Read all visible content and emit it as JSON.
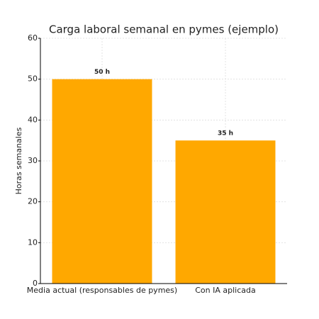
{
  "chart_data": {
    "type": "bar",
    "title": "Carga laboral semanal en pymes (ejemplo)",
    "y_label": "Horas semanales",
    "categories": [
      "Media actual (responsables de pymes)",
      "Con IA aplicada"
    ],
    "values": [
      50,
      35
    ],
    "value_labels": [
      "50 h",
      "35 h"
    ],
    "color": "#ffa800",
    "ylim": [
      0,
      60
    ],
    "yticks": [
      0,
      10,
      20,
      30,
      40,
      50,
      60
    ],
    "grid": true
  }
}
